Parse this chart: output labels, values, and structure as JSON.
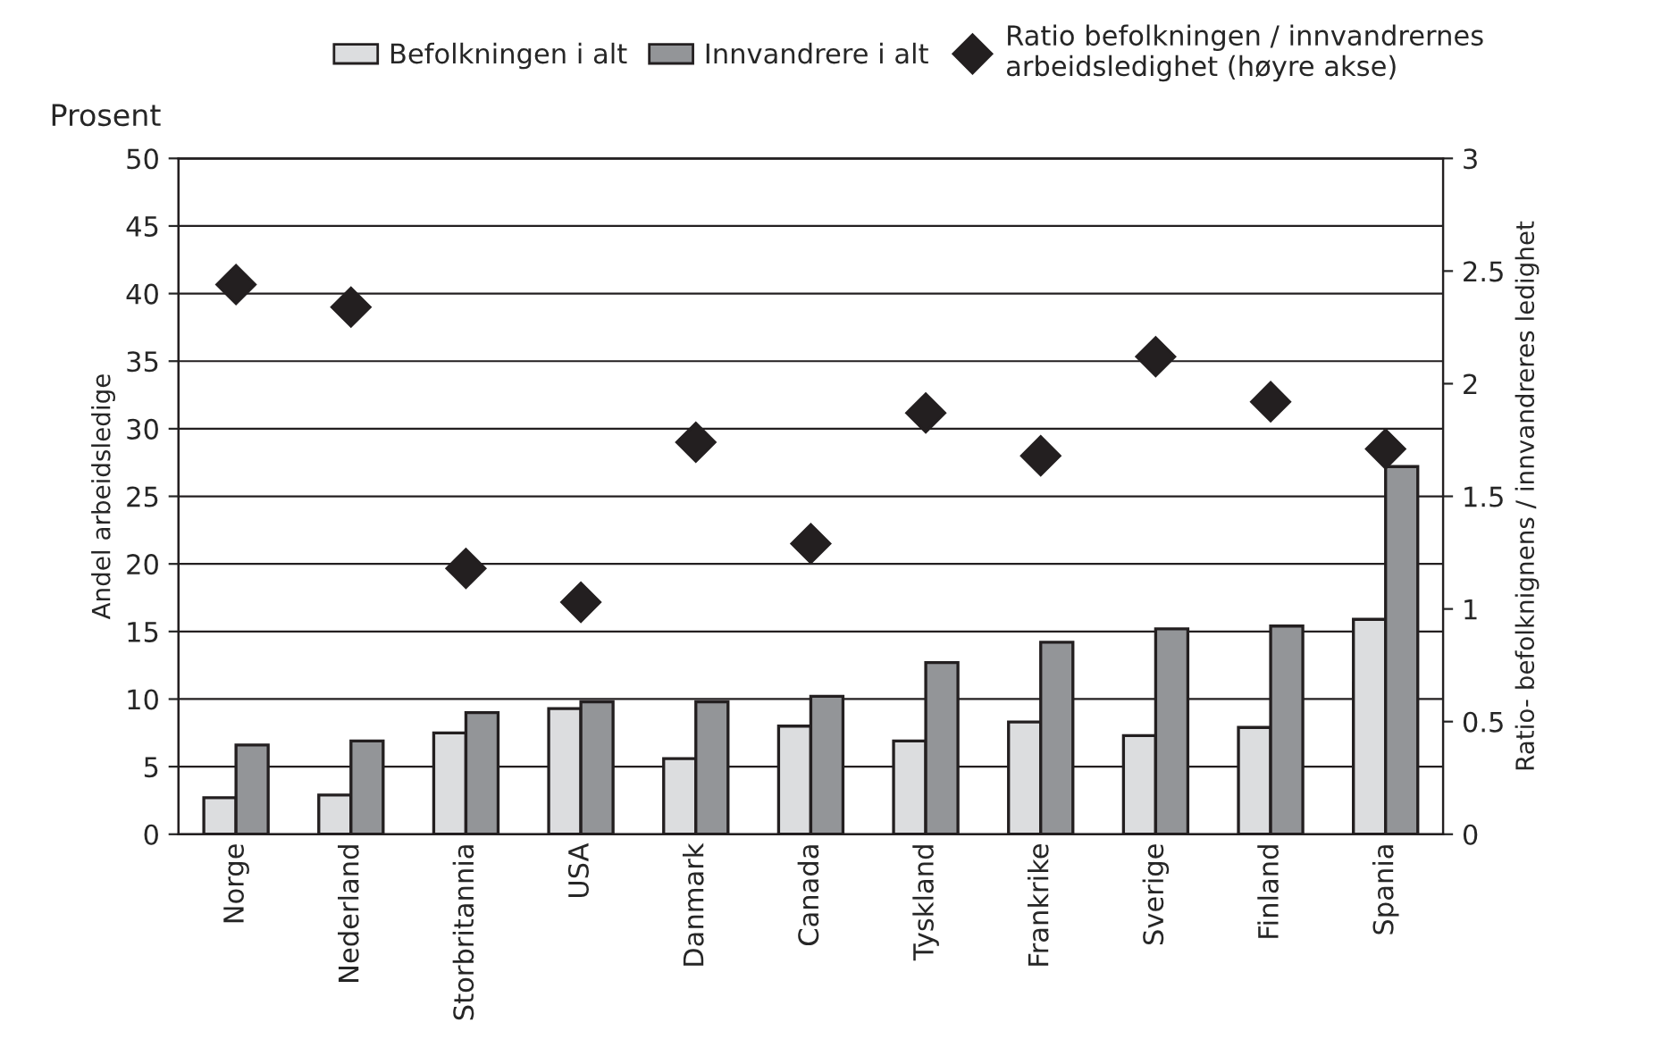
{
  "chart_data": {
    "type": "bar",
    "categories": [
      "Norge",
      "Nederland",
      "Storbritannia",
      "USA",
      "Danmark",
      "Canada",
      "Tyskland",
      "Frankrike",
      "Sverige",
      "Finland",
      "Spania"
    ],
    "series": [
      {
        "name": "Befolkningen i alt",
        "color": "#dcdddf",
        "values": [
          2.7,
          2.9,
          7.5,
          9.3,
          5.6,
          8.0,
          6.9,
          8.3,
          7.3,
          7.9,
          15.9
        ]
      },
      {
        "name": "Innvandrere i alt",
        "color": "#939598",
        "values": [
          6.6,
          6.9,
          9.0,
          9.8,
          9.8,
          10.2,
          12.7,
          14.2,
          15.2,
          15.4,
          27.2
        ]
      },
      {
        "name": "Ratio befolkningen / innvandrernes arbeidsledighet (høyre akse)",
        "color": "#231f20",
        "type": "scatter",
        "axis": "y2",
        "marker": "diamond",
        "values": [
          2.44,
          2.34,
          1.18,
          1.03,
          1.74,
          1.29,
          1.87,
          1.68,
          2.12,
          1.92,
          1.71
        ]
      }
    ],
    "ylabel": "Andel arbeidsledige",
    "y2label": "Ratio- befolknignens / innvandreres ledighet",
    "annotations": [
      "Prosent"
    ],
    "ylim": [
      0,
      50
    ],
    "yticks": [
      0,
      5,
      10,
      15,
      20,
      25,
      30,
      35,
      40,
      45,
      50
    ],
    "y2lim": [
      0,
      3
    ],
    "y2ticks": [
      0,
      0.5,
      1,
      1.5,
      2,
      2.5,
      3
    ],
    "grid": "y",
    "legend": "top"
  }
}
